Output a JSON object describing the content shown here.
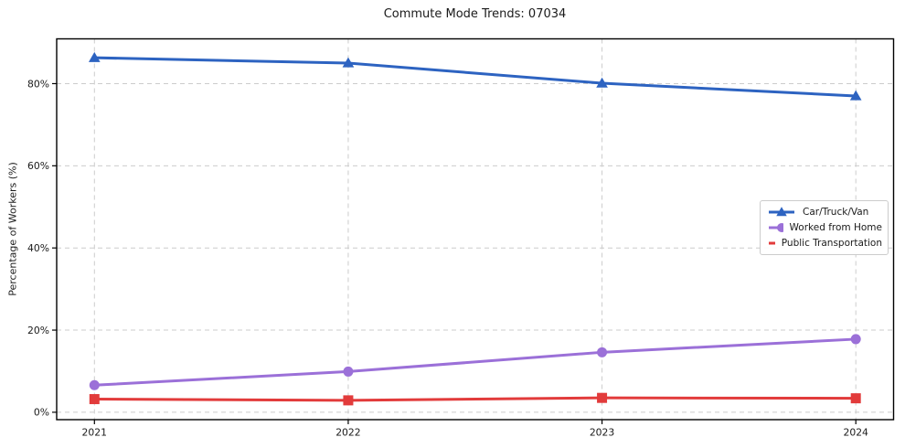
{
  "title": "Commute Mode Trends: 07034",
  "chart_data": {
    "type": "line",
    "title": "Commute Mode Trends: 07034",
    "xlabel": "",
    "ylabel": "Percentage of Workers (%)",
    "categories": [
      "2021",
      "2022",
      "2023",
      "2024"
    ],
    "series": [
      {
        "name": "Car/Truck/Van",
        "marker": "triangle",
        "color": "#2d63c1",
        "values": [
          86.3,
          85.0,
          80.1,
          77.0
        ]
      },
      {
        "name": "Worked from Home",
        "marker": "circle",
        "color": "#9b70d8",
        "values": [
          6.6,
          9.9,
          14.6,
          17.8
        ]
      },
      {
        "name": "Public Transportation",
        "marker": "square",
        "color": "#e23b3b",
        "values": [
          3.2,
          2.9,
          3.5,
          3.4
        ]
      }
    ],
    "yticks": [
      0,
      20,
      40,
      60,
      80
    ],
    "ytick_labels": [
      "0%",
      "20%",
      "40%",
      "60%",
      "80%"
    ],
    "ylim": [
      -1.8,
      90.9
    ],
    "grid": true,
    "grid_style": "dashed",
    "legend_position": "center-right"
  },
  "colors": {
    "grid": "#cccccc",
    "axis": "#000000",
    "text": "#1a1a1a",
    "background": "#ffffff"
  }
}
